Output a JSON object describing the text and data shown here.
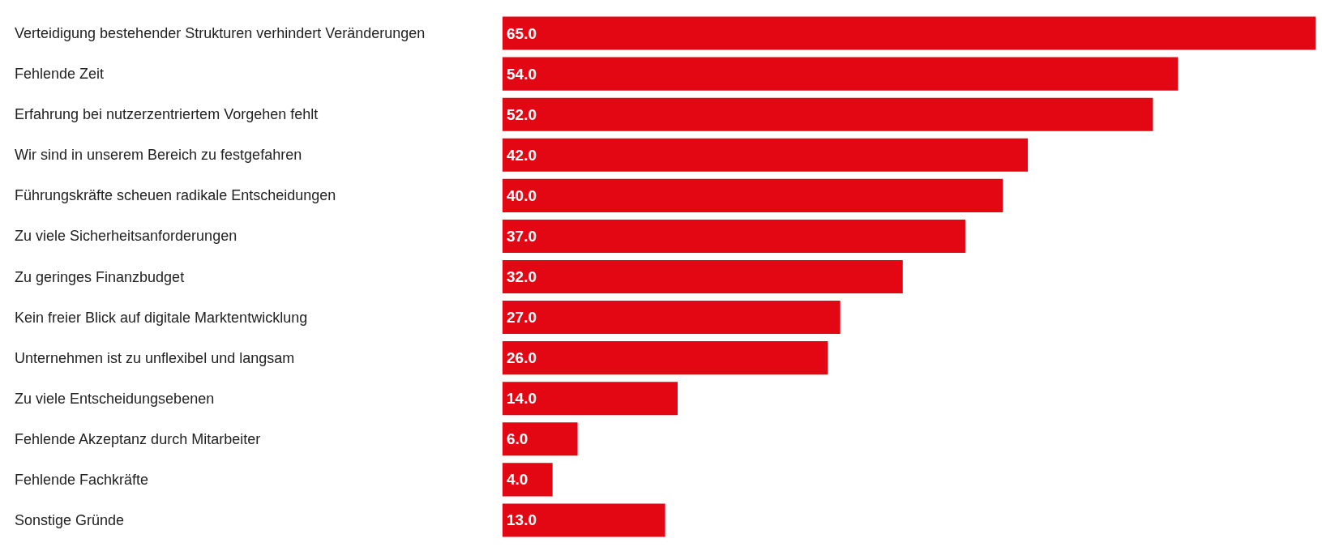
{
  "chart_data": {
    "type": "bar",
    "orientation": "horizontal",
    "categories": [
      "Verteidigung bestehender Strukturen verhindert Veränderungen",
      "Fehlende Zeit",
      "Erfahrung bei nutzerzentriertem Vorgehen fehlt",
      "Wir sind in unserem Bereich zu festgefahren",
      "Führungskräfte scheuen radikale Entscheidungen",
      "Zu viele Sicherheitsanforderungen",
      "Zu geringes Finanzbudget",
      "Kein freier Blick auf digitale Marktentwicklung",
      "Unternehmen ist zu unflexibel und langsam",
      "Zu viele Entscheidungsebenen",
      "Fehlende Akzeptanz durch Mitarbeiter",
      "Fehlende Fachkräfte",
      "Sonstige Gründe"
    ],
    "values": [
      65,
      54,
      52,
      42,
      40,
      37,
      32,
      27,
      26,
      14,
      6,
      4,
      13
    ],
    "value_labels": [
      "65.0",
      "54.0",
      "52.0",
      "42.0",
      "40.0",
      "37.0",
      "32.0",
      "27.0",
      "26.0",
      "14.0",
      "6.0",
      "4.0",
      "13.0"
    ],
    "color": "#e30613"
  }
}
